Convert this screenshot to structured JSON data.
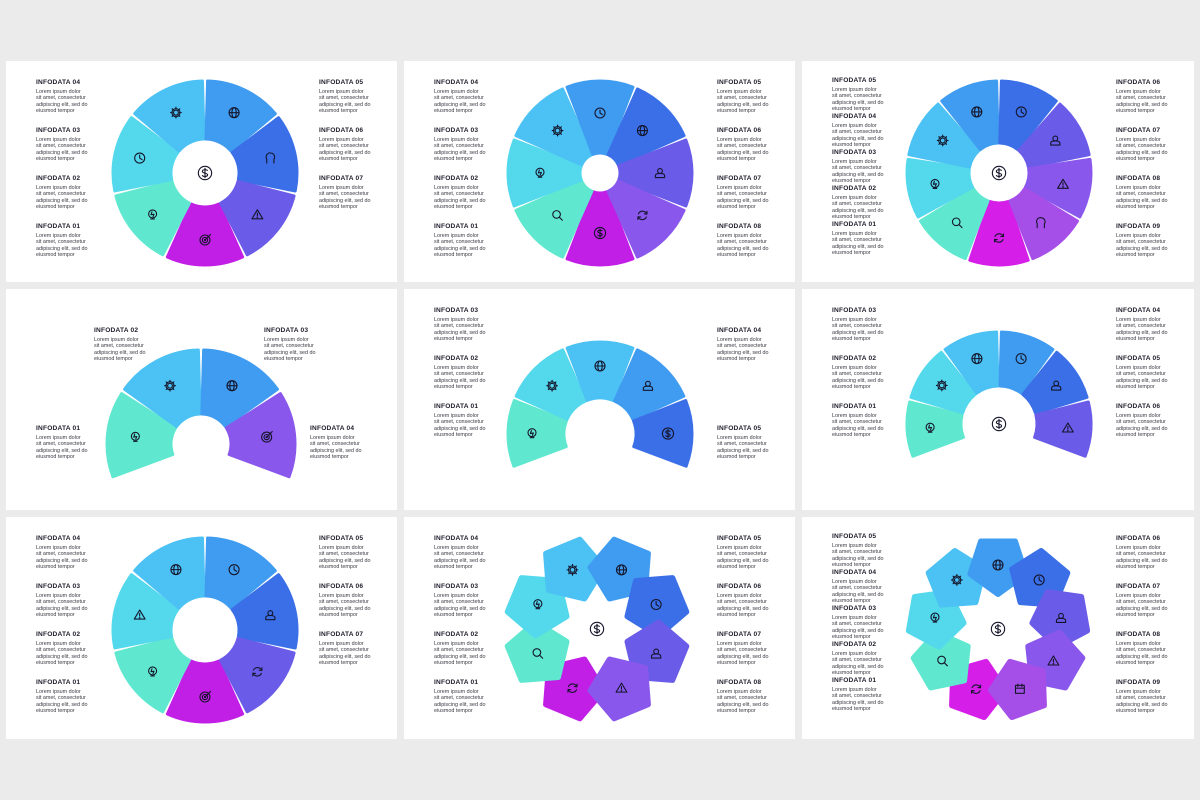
{
  "colors": {
    "c1": "#5fe8cf",
    "c2": "#53d8ec",
    "c3": "#4bc1f4",
    "c4": "#3f9cf0",
    "c5": "#3a6fe8",
    "c6": "#6a5be8",
    "c7": "#8a57ec",
    "c8": "#a64fe8",
    "c9": "#c21fe6",
    "c10": "#d51ee8"
  },
  "body_lines": [
    "Lorem ipsum dolor",
    "sit amet, consectetur",
    "adipiscing elit, sed do",
    "eiusmod tempor"
  ],
  "slides": [
    {
      "labels": [
        {
          "title": "INFODATA 04",
          "side": "left"
        },
        {
          "title": "INFODATA 03",
          "side": "left"
        },
        {
          "title": "INFODATA 02",
          "side": "left"
        },
        {
          "title": "INFODATA 01",
          "side": "left"
        },
        {
          "title": "INFODATA 05",
          "side": "right"
        },
        {
          "title": "INFODATA 06",
          "side": "right"
        },
        {
          "title": "INFODATA 07",
          "side": "right"
        }
      ],
      "segments": [
        "c9",
        "c1",
        "c2",
        "c3",
        "c4",
        "c5",
        "c6"
      ],
      "icons": [
        "target-icon",
        "lightbulb-icon",
        "clock-icon",
        "gear-icon",
        "globe-icon",
        "head-icon",
        "warning-icon"
      ],
      "center_icon": "dollar-icon"
    },
    {
      "labels": [
        {
          "title": "INFODATA 04",
          "side": "left"
        },
        {
          "title": "INFODATA 03",
          "side": "left"
        },
        {
          "title": "INFODATA 02",
          "side": "left"
        },
        {
          "title": "INFODATA 01",
          "side": "left"
        },
        {
          "title": "INFODATA 05",
          "side": "right"
        },
        {
          "title": "INFODATA 06",
          "side": "right"
        },
        {
          "title": "INFODATA 07",
          "side": "right"
        },
        {
          "title": "INFODATA 08",
          "side": "right"
        }
      ],
      "segments": [
        "c9",
        "c1",
        "c2",
        "c3",
        "c4",
        "c5",
        "c6",
        "c7"
      ],
      "icons": [
        "dollar-icon",
        "search-icon",
        "lightbulb-icon",
        "gear-icon",
        "clock-icon",
        "globe-icon",
        "user-icon",
        "refresh-icon"
      ]
    },
    {
      "labels": [
        {
          "title": "INFODATA 05",
          "side": "left"
        },
        {
          "title": "INFODATA 04",
          "side": "left"
        },
        {
          "title": "INFODATA 03",
          "side": "left"
        },
        {
          "title": "INFODATA 02",
          "side": "left"
        },
        {
          "title": "INFODATA 01",
          "side": "left"
        },
        {
          "title": "INFODATA 06",
          "side": "right"
        },
        {
          "title": "INFODATA 07",
          "side": "right"
        },
        {
          "title": "INFODATA 08",
          "side": "right"
        },
        {
          "title": "INFODATA 09",
          "side": "right"
        }
      ],
      "segments": [
        "c10",
        "c1",
        "c2",
        "c3",
        "c4",
        "c5",
        "c6",
        "c7",
        "c8"
      ],
      "icons": [
        "refresh-icon",
        "search-icon",
        "lightbulb-icon",
        "gear-icon",
        "globe-icon",
        "clock-icon",
        "user-icon",
        "warning-icon",
        "head-icon"
      ],
      "center_icon": "dollar-icon"
    },
    {
      "labels": [
        {
          "title": "INFODATA 02",
          "side": "left"
        },
        {
          "title": "INFODATA 01",
          "side": "left"
        },
        {
          "title": "INFODATA 03",
          "side": "right"
        },
        {
          "title": "INFODATA 04",
          "side": "right"
        }
      ],
      "segments": [
        "c1",
        "c3",
        "c4",
        "c7"
      ],
      "icons": [
        "lightbulb-icon",
        "gear-icon",
        "globe-icon",
        "target-icon"
      ]
    },
    {
      "labels": [
        {
          "title": "INFODATA 03",
          "side": "left"
        },
        {
          "title": "INFODATA 02",
          "side": "left"
        },
        {
          "title": "INFODATA 01",
          "side": "left"
        },
        {
          "title": "INFODATA 04",
          "side": "right"
        },
        {
          "title": "INFODATA 05",
          "side": "right"
        }
      ],
      "segments": [
        "c1",
        "c2",
        "c3",
        "c4",
        "c5"
      ],
      "icons": [
        "lightbulb-icon",
        "gear-icon",
        "globe-icon",
        "user-icon",
        "dollar-icon"
      ]
    },
    {
      "labels": [
        {
          "title": "INFODATA 03",
          "side": "left"
        },
        {
          "title": "INFODATA 02",
          "side": "left"
        },
        {
          "title": "INFODATA 01",
          "side": "left"
        },
        {
          "title": "INFODATA 04",
          "side": "right"
        },
        {
          "title": "INFODATA 05",
          "side": "right"
        },
        {
          "title": "INFODATA 06",
          "side": "right"
        }
      ],
      "segments": [
        "c1",
        "c2",
        "c3",
        "c4",
        "c5",
        "c6"
      ],
      "icons": [
        "lightbulb-icon",
        "gear-icon",
        "globe-icon",
        "clock-icon",
        "user-icon",
        "warning-icon"
      ],
      "center_icon": "dollar-icon"
    },
    {
      "labels": [
        {
          "title": "INFODATA 04",
          "side": "left"
        },
        {
          "title": "INFODATA 03",
          "side": "left"
        },
        {
          "title": "INFODATA 02",
          "side": "left"
        },
        {
          "title": "INFODATA 01",
          "side": "left"
        },
        {
          "title": "INFODATA 05",
          "side": "right"
        },
        {
          "title": "INFODATA 06",
          "side": "right"
        },
        {
          "title": "INFODATA 07",
          "side": "right"
        }
      ],
      "segments": [
        "c9",
        "c1",
        "c2",
        "c3",
        "c4",
        "c5",
        "c6"
      ],
      "icons": [
        "target-icon",
        "lightbulb-icon",
        "warning-icon",
        "globe-icon",
        "clock-icon",
        "user-icon",
        "refresh-icon"
      ]
    },
    {
      "labels": [
        {
          "title": "INFODATA 04",
          "side": "left"
        },
        {
          "title": "INFODATA 03",
          "side": "left"
        },
        {
          "title": "INFODATA 02",
          "side": "left"
        },
        {
          "title": "INFODATA 01",
          "side": "left"
        },
        {
          "title": "INFODATA 05",
          "side": "right"
        },
        {
          "title": "INFODATA 06",
          "side": "right"
        },
        {
          "title": "INFODATA 07",
          "side": "right"
        },
        {
          "title": "INFODATA 08",
          "side": "right"
        }
      ],
      "segments": [
        "c9",
        "c1",
        "c2",
        "c3",
        "c4",
        "c5",
        "c6",
        "c7"
      ],
      "icons": [
        "refresh-icon",
        "search-icon",
        "lightbulb-icon",
        "gear-icon",
        "globe-icon",
        "clock-icon",
        "user-icon",
        "warning-icon"
      ],
      "center_icon": "dollar-icon"
    },
    {
      "labels": [
        {
          "title": "INFODATA 05",
          "side": "left"
        },
        {
          "title": "INFODATA 04",
          "side": "left"
        },
        {
          "title": "INFODATA 03",
          "side": "left"
        },
        {
          "title": "INFODATA 02",
          "side": "left"
        },
        {
          "title": "INFODATA 01",
          "side": "left"
        },
        {
          "title": "INFODATA 06",
          "side": "right"
        },
        {
          "title": "INFODATA 07",
          "side": "right"
        },
        {
          "title": "INFODATA 08",
          "side": "right"
        },
        {
          "title": "INFODATA 09",
          "side": "right"
        }
      ],
      "segments": [
        "c10",
        "c1",
        "c2",
        "c3",
        "c4",
        "c5",
        "c6",
        "c7",
        "c8"
      ],
      "icons": [
        "refresh-icon",
        "search-icon",
        "lightbulb-icon",
        "gear-icon",
        "globe-icon",
        "clock-icon",
        "user-icon",
        "warning-icon",
        "calendar-icon"
      ],
      "center_icon": "dollar-icon"
    }
  ]
}
